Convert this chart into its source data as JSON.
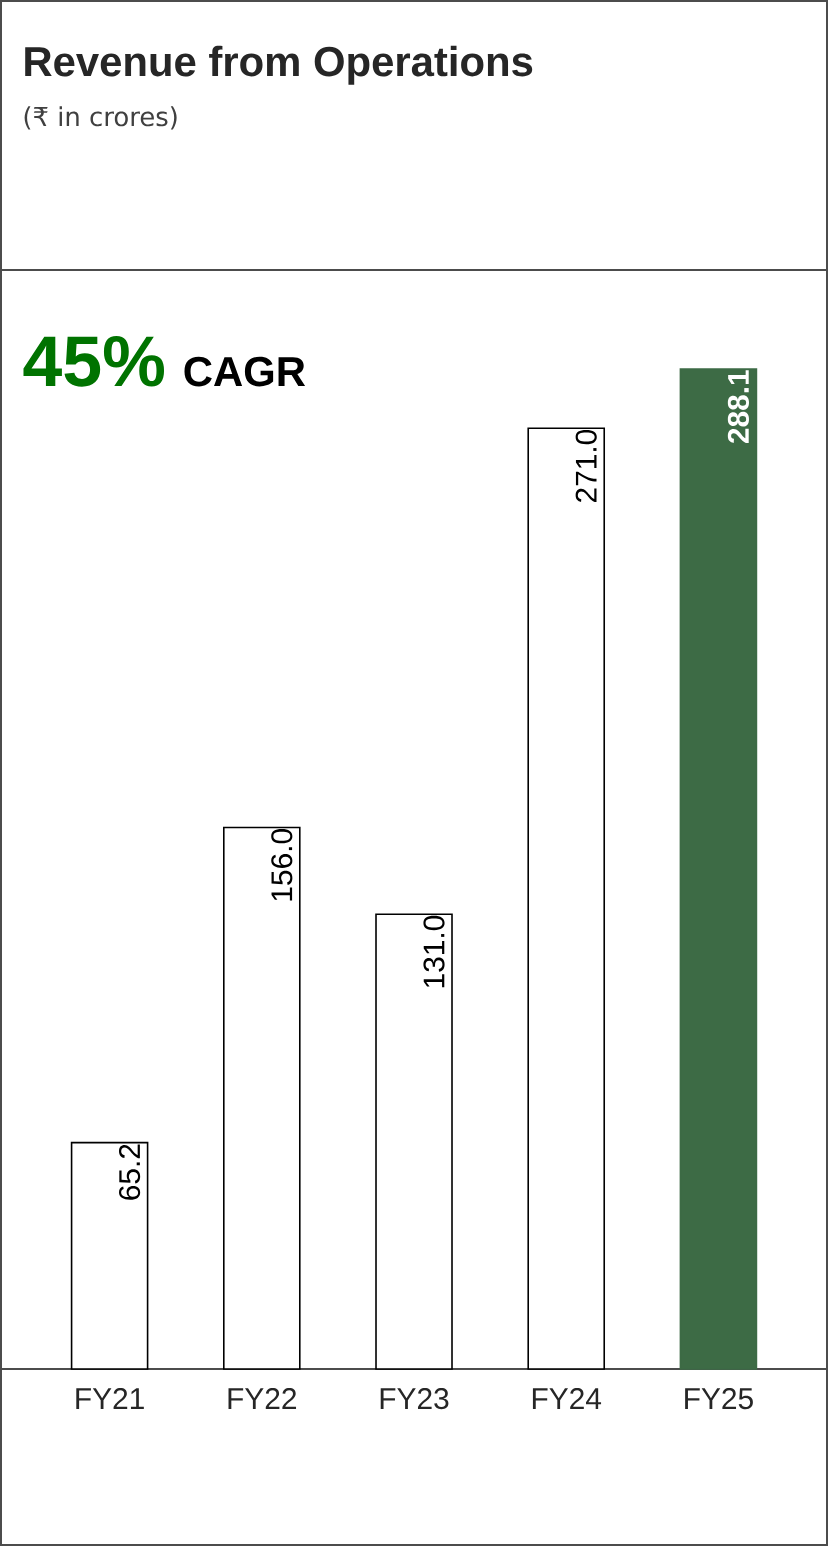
{
  "chart_data": {
    "type": "bar",
    "title": "Revenue from Operations",
    "subtitle": "(₹ in crores)",
    "annotations": [
      "45%",
      "CAGR"
    ],
    "categories": [
      "FY21",
      "FY22",
      "FY23",
      "FY24",
      "FY25"
    ],
    "values": [
      65.2,
      156.0,
      131.0,
      271.0,
      288.1
    ],
    "value_labels": [
      "65.2",
      "156.0",
      "131.0",
      "271.0",
      "288.1"
    ],
    "colors": [
      "#ffffff",
      "#ffffff",
      "#ffffff",
      "#ffffff",
      "#3d6b45"
    ]
  }
}
